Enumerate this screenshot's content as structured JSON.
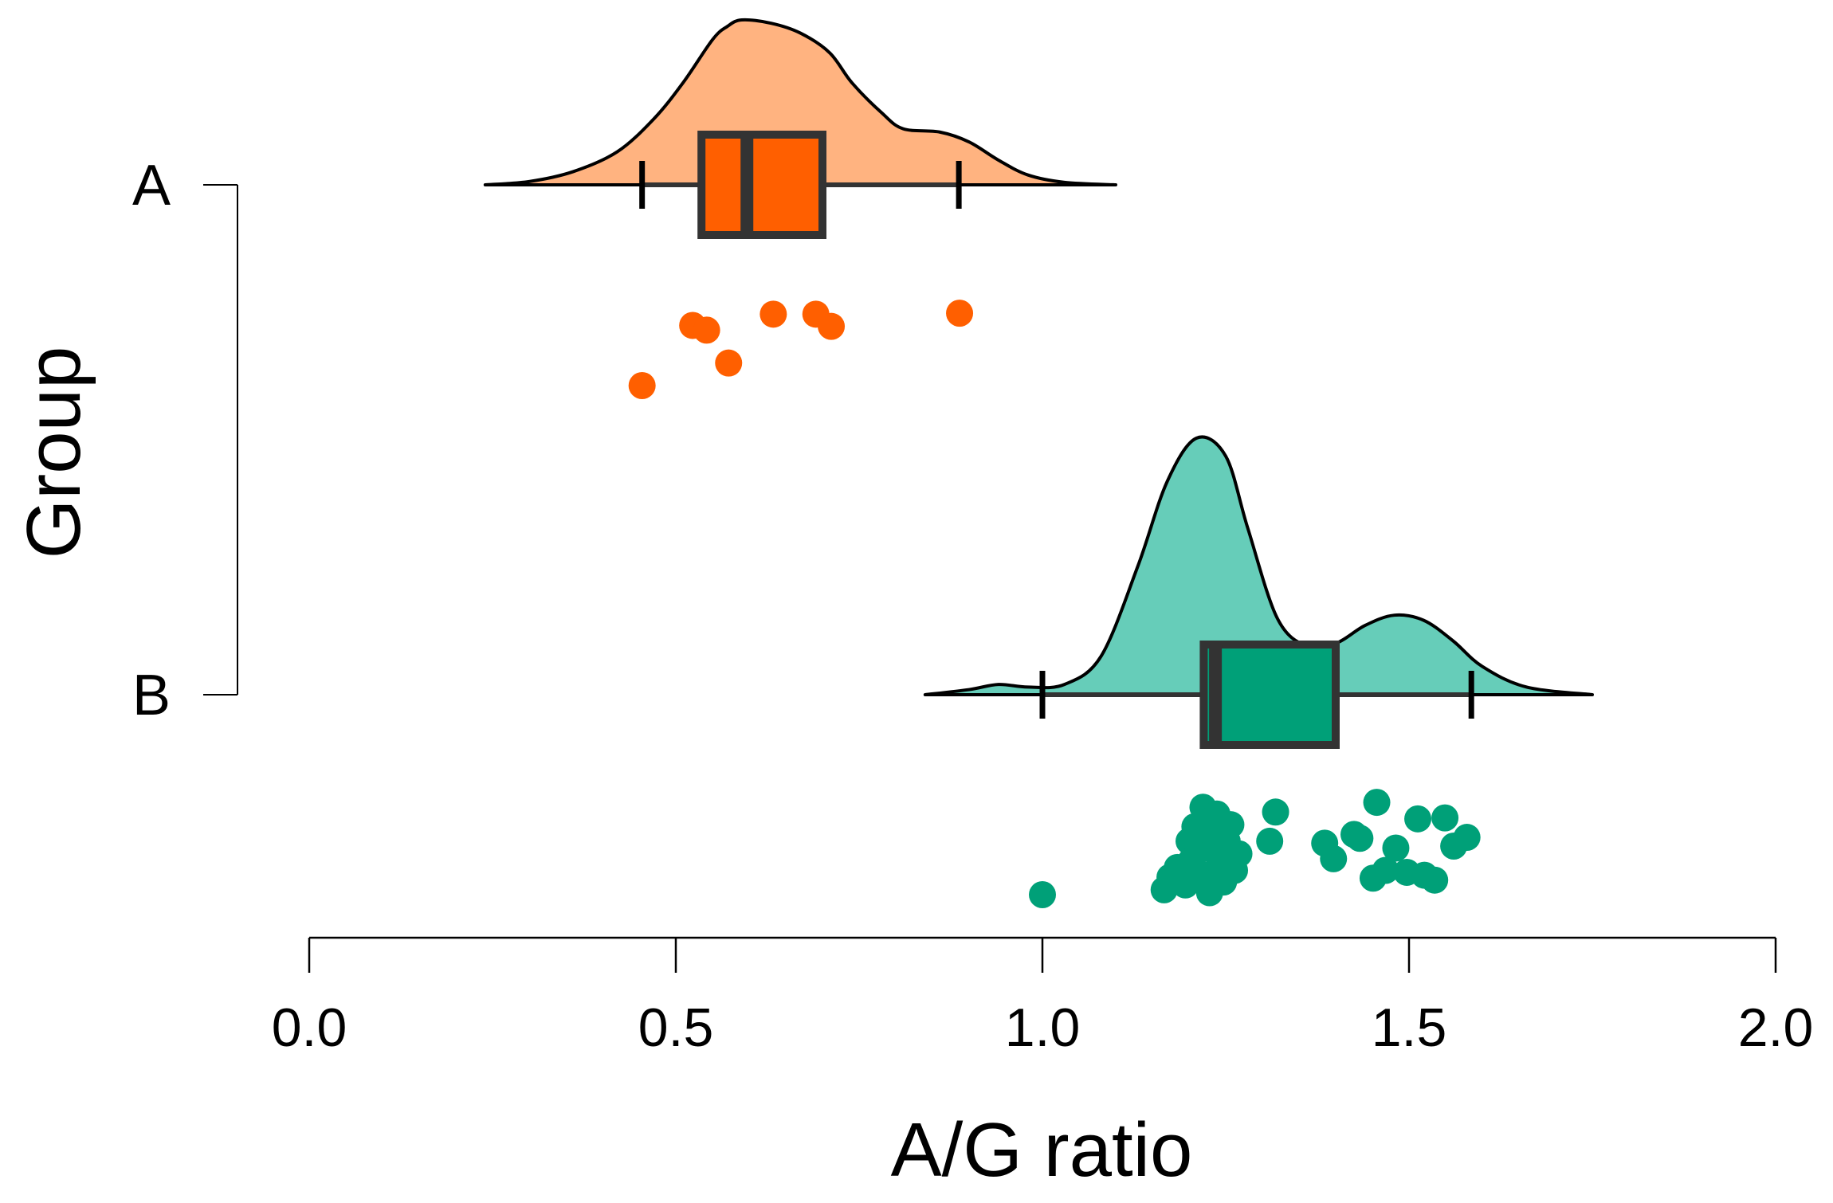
{
  "chart_data": {
    "type": "raincloud",
    "title": "",
    "xlabel": "A/G ratio",
    "ylabel": "Group",
    "xlim": [
      0.0,
      2.0
    ],
    "x_ticks": [
      0.0,
      0.5,
      1.0,
      1.5,
      2.0
    ],
    "x_tick_labels": [
      "0.0",
      "0.5",
      "1.0",
      "1.5",
      "2.0"
    ],
    "grid": false,
    "groups": [
      {
        "name": "A",
        "label": "A",
        "fill_color": "#ffb380",
        "box_color": "#ff5f00",
        "point_color": "#ff5f00",
        "density_range": [
          0.24,
          1.1
        ],
        "density": [
          [
            0.24,
            0.0
          ],
          [
            0.3,
            0.02
          ],
          [
            0.36,
            0.08
          ],
          [
            0.42,
            0.2
          ],
          [
            0.47,
            0.4
          ],
          [
            0.51,
            0.62
          ],
          [
            0.55,
            0.88
          ],
          [
            0.57,
            0.96
          ],
          [
            0.59,
            1.0
          ],
          [
            0.63,
            0.98
          ],
          [
            0.67,
            0.92
          ],
          [
            0.71,
            0.8
          ],
          [
            0.74,
            0.62
          ],
          [
            0.78,
            0.44
          ],
          [
            0.81,
            0.34
          ],
          [
            0.86,
            0.32
          ],
          [
            0.9,
            0.26
          ],
          [
            0.94,
            0.15
          ],
          [
            0.98,
            0.06
          ],
          [
            1.03,
            0.015
          ],
          [
            1.1,
            0.0
          ]
        ],
        "box": {
          "whisker_low": 0.454,
          "q1": 0.535,
          "median": 0.597,
          "q3": 0.7,
          "whisker_high": 0.886
        },
        "points": [
          [
            0.454,
            0.0
          ],
          [
            0.572,
            0.24
          ],
          [
            0.523,
            0.64
          ],
          [
            0.542,
            0.59
          ],
          [
            0.633,
            0.76
          ],
          [
            0.691,
            0.76
          ],
          [
            0.712,
            0.63
          ],
          [
            0.887,
            0.77
          ]
        ]
      },
      {
        "name": "B",
        "label": "B",
        "fill_color": "#66cdb9",
        "box_color": "#00a078",
        "point_color": "#00a078",
        "density_range": [
          0.84,
          1.75
        ],
        "density": [
          [
            0.84,
            0.0
          ],
          [
            0.9,
            0.02
          ],
          [
            0.94,
            0.04
          ],
          [
            0.98,
            0.03
          ],
          [
            1.03,
            0.04
          ],
          [
            1.08,
            0.15
          ],
          [
            1.13,
            0.5
          ],
          [
            1.17,
            0.83
          ],
          [
            1.21,
            1.0
          ],
          [
            1.25,
            0.93
          ],
          [
            1.28,
            0.65
          ],
          [
            1.32,
            0.3
          ],
          [
            1.36,
            0.19
          ],
          [
            1.4,
            0.2
          ],
          [
            1.44,
            0.27
          ],
          [
            1.48,
            0.31
          ],
          [
            1.52,
            0.29
          ],
          [
            1.56,
            0.21
          ],
          [
            1.6,
            0.11
          ],
          [
            1.66,
            0.03
          ],
          [
            1.75,
            0.0
          ]
        ],
        "box": {
          "whisker_low": 1.0,
          "q1": 1.22,
          "median": 1.236,
          "q3": 1.4,
          "whisker_high": 1.585
        },
        "points": [
          [
            1.0,
            0.0
          ],
          [
            1.166,
            0.05
          ],
          [
            1.174,
            0.18
          ],
          [
            1.184,
            0.28
          ],
          [
            1.195,
            0.1
          ],
          [
            1.2,
            0.55
          ],
          [
            1.203,
            0.35
          ],
          [
            1.208,
            0.7
          ],
          [
            1.214,
            0.22
          ],
          [
            1.219,
            0.9
          ],
          [
            1.224,
            0.48
          ],
          [
            1.228,
            0.02
          ],
          [
            1.233,
            0.62
          ],
          [
            1.238,
            0.83
          ],
          [
            1.242,
            0.33
          ],
          [
            1.247,
            0.13
          ],
          [
            1.252,
            0.55
          ],
          [
            1.257,
            0.72
          ],
          [
            1.262,
            0.25
          ],
          [
            1.268,
            0.42
          ],
          [
            1.31,
            0.55
          ],
          [
            1.318,
            0.85
          ],
          [
            1.385,
            0.53
          ],
          [
            1.397,
            0.37
          ],
          [
            1.425,
            0.62
          ],
          [
            1.433,
            0.58
          ],
          [
            1.451,
            0.17
          ],
          [
            1.456,
            0.95
          ],
          [
            1.468,
            0.25
          ],
          [
            1.482,
            0.48
          ],
          [
            1.497,
            0.23
          ],
          [
            1.512,
            0.78
          ],
          [
            1.521,
            0.2
          ],
          [
            1.535,
            0.15
          ],
          [
            1.549,
            0.79
          ],
          [
            1.561,
            0.5
          ],
          [
            1.579,
            0.59
          ]
        ]
      }
    ]
  }
}
